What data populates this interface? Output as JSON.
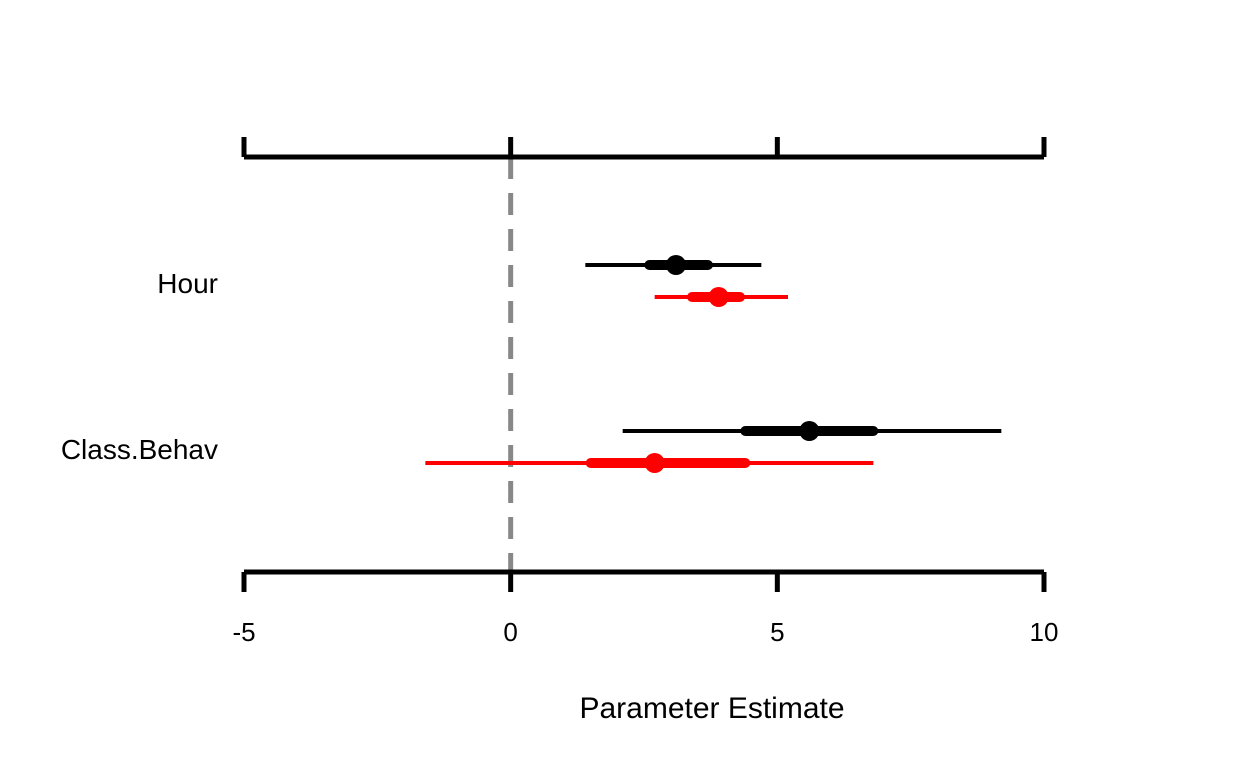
{
  "chart_data": {
    "type": "coefficient-plot",
    "xlabel": "Parameter Estimate",
    "xlim": [
      -5,
      10
    ],
    "xticks": [
      -5,
      0,
      5,
      10
    ],
    "xtick_labels": [
      "-5",
      "0",
      "5",
      "10"
    ],
    "reference_line": 0,
    "categories": [
      "Hour",
      "Class.Behav"
    ],
    "series": [
      {
        "color": "#000000",
        "points": [
          {
            "category": "Hour",
            "estimate": 3.1,
            "inner": [
              2.6,
              3.7
            ],
            "outer": [
              1.4,
              4.7
            ]
          },
          {
            "category": "Class.Behav",
            "estimate": 5.6,
            "inner": [
              4.4,
              6.8
            ],
            "outer": [
              2.1,
              9.2
            ]
          }
        ]
      },
      {
        "color": "#ff0000",
        "points": [
          {
            "category": "Hour",
            "estimate": 3.9,
            "inner": [
              3.4,
              4.3
            ],
            "outer": [
              2.7,
              5.2
            ]
          },
          {
            "category": "Class.Behav",
            "estimate": 2.7,
            "inner": [
              1.5,
              4.4
            ],
            "outer": [
              -1.6,
              6.8
            ]
          }
        ]
      }
    ]
  },
  "colors": {
    "axis": "#000000",
    "reference_line": "#888888"
  }
}
